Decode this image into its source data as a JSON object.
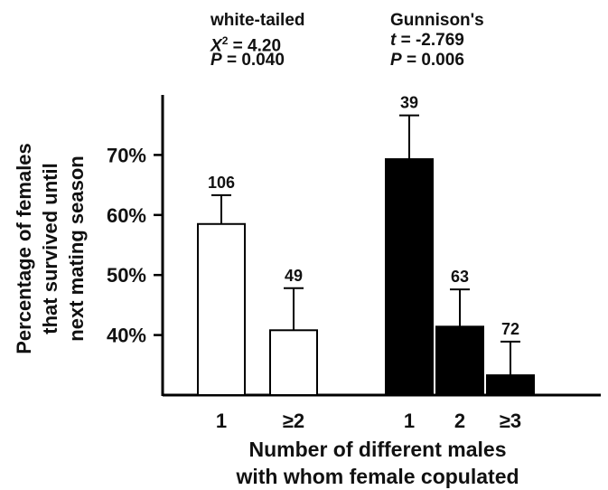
{
  "chart_data": {
    "type": "bar",
    "ylabel_lines": [
      "Percentage of females",
      "that survived until",
      "next mating season"
    ],
    "xlabel_lines": [
      "Number of different males",
      "with whom female copulated"
    ],
    "ylim": [
      30,
      80
    ],
    "yticks": [
      40,
      50,
      60,
      70
    ],
    "ytick_labels": [
      "40%",
      "50%",
      "60%",
      "70%"
    ],
    "groups": [
      {
        "name": "white-tailed",
        "fill": "#ffffff",
        "stat": {
          "test_symbol": "X",
          "test_sup": "2",
          "test_value": " = 4.20",
          "p_symbol": "P",
          "p_value": " = 0.040"
        },
        "bars": [
          {
            "category": "1",
            "value": 58.5,
            "error": 4.8,
            "n": "106"
          },
          {
            "category": "≥2",
            "value": 40.8,
            "error": 7.0,
            "n": "49"
          }
        ]
      },
      {
        "name": "Gunnison's",
        "fill": "#000000",
        "stat": {
          "test_symbol": "t",
          "test_sup": "",
          "test_value": " = -2.769",
          "p_symbol": "P",
          "p_value": " = 0.006"
        },
        "bars": [
          {
            "category": "1",
            "value": 69.3,
            "error": 7.3,
            "n": "39"
          },
          {
            "category": "2",
            "value": 41.4,
            "error": 6.2,
            "n": "63"
          },
          {
            "category": "≥3",
            "value": 33.3,
            "error": 5.6,
            "n": "72"
          }
        ]
      }
    ]
  }
}
